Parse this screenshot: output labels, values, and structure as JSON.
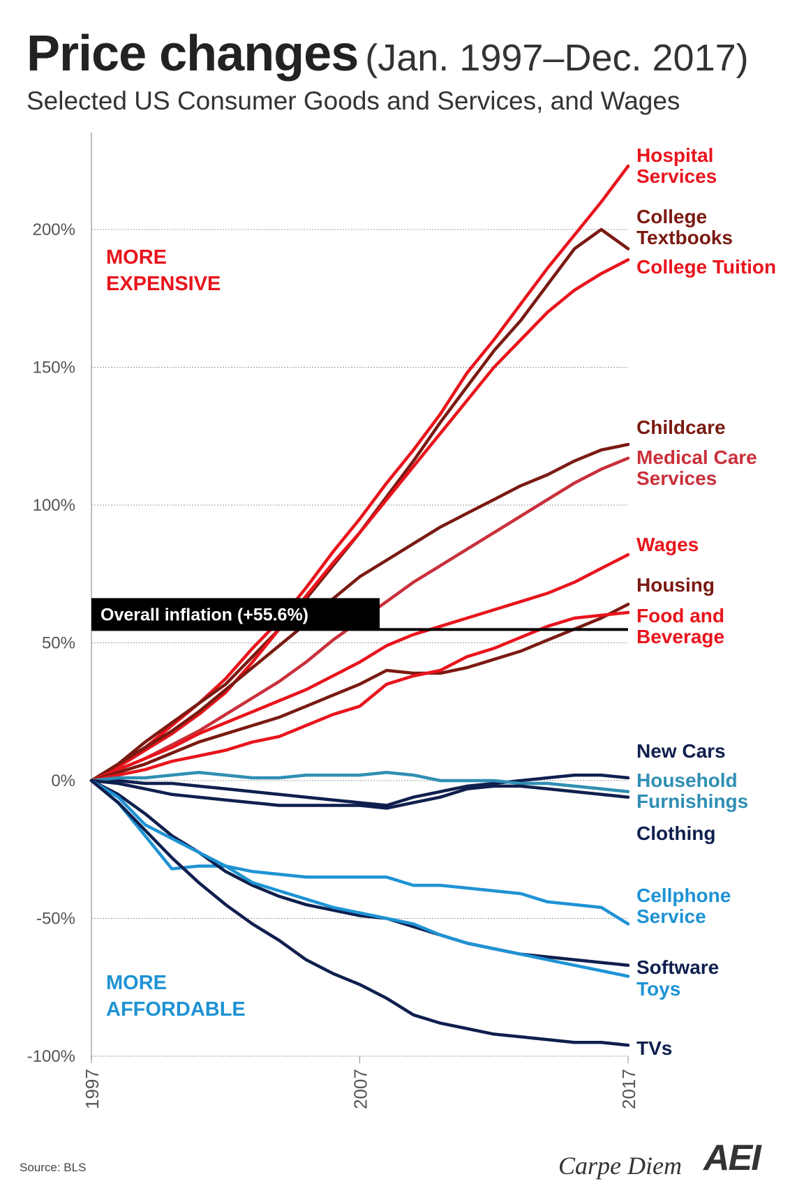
{
  "title": "Price changes",
  "title_range": "(Jan. 1997–Dec. 2017)",
  "subtitle": "Selected US Consumer Goods and Services, and Wages",
  "source": "Source:  BLS",
  "logo_text": "Carpe Diem",
  "logo_mark": "AEI",
  "chart_data": {
    "type": "line",
    "title": "Price changes (Jan. 1997–Dec. 2017)",
    "xlabel": "",
    "ylabel": "",
    "xlim": [
      1997,
      2017
    ],
    "ylim": [
      -100,
      230
    ],
    "yticks": [
      200,
      150,
      100,
      50,
      0,
      -50,
      -100
    ],
    "ytick_labels": [
      "200%",
      "150%",
      "100%",
      "50%",
      "0%",
      "-50%",
      "-100%"
    ],
    "xticks": [
      1997,
      2007,
      2017
    ],
    "xtick_labels": [
      "1997",
      "2007",
      "2017"
    ],
    "grid": true,
    "annotations": {
      "more_expensive_line1": "MORE",
      "more_expensive_line2": "EXPENSIVE",
      "more_affordable_line1": "MORE",
      "more_affordable_line2": "AFFORDABLE",
      "overall_inflation_label": "Overall inflation (+55.6%)",
      "overall_inflation_value": 55.6
    },
    "series": [
      {
        "name": "Hospital Services",
        "label_lines": [
          "Hospital",
          "Services"
        ],
        "color": "#e8141c",
        "x": [
          1997,
          1998,
          1999,
          2000,
          2001,
          2002,
          2003,
          2004,
          2005,
          2006,
          2007,
          2008,
          2009,
          2010,
          2011,
          2012,
          2013,
          2014,
          2015,
          2016,
          2017
        ],
        "values": [
          0,
          5,
          12,
          20,
          28,
          37,
          48,
          58,
          70,
          83,
          95,
          108,
          120,
          133,
          148,
          160,
          173,
          186,
          198,
          210,
          223
        ]
      },
      {
        "name": "College Textbooks",
        "label_lines": [
          "College",
          "Textbooks"
        ],
        "color": "#7a1a12",
        "x": [
          1997,
          1998,
          1999,
          2000,
          2001,
          2002,
          2003,
          2004,
          2005,
          2006,
          2007,
          2008,
          2009,
          2010,
          2011,
          2012,
          2013,
          2014,
          2015,
          2016,
          2017
        ],
        "values": [
          0,
          6,
          14,
          21,
          28,
          35,
          45,
          55,
          66,
          78,
          90,
          103,
          116,
          130,
          143,
          156,
          167,
          180,
          193,
          200,
          193
        ]
      },
      {
        "name": "College Tuition",
        "label_lines": [
          "College Tuition"
        ],
        "color": "#e8141c",
        "x": [
          1997,
          1998,
          1999,
          2000,
          2001,
          2002,
          2003,
          2004,
          2005,
          2006,
          2007,
          2008,
          2009,
          2010,
          2011,
          2012,
          2013,
          2014,
          2015,
          2016,
          2017
        ],
        "values": [
          0,
          5,
          11,
          17,
          24,
          32,
          43,
          55,
          67,
          79,
          90,
          102,
          114,
          126,
          138,
          150,
          160,
          170,
          178,
          184,
          189
        ]
      },
      {
        "name": "Childcare",
        "label_lines": [
          "Childcare"
        ],
        "color": "#7a1a12",
        "x": [
          1997,
          1998,
          1999,
          2000,
          2001,
          2002,
          2003,
          2004,
          2005,
          2006,
          2007,
          2008,
          2009,
          2010,
          2011,
          2012,
          2013,
          2014,
          2015,
          2016,
          2017
        ],
        "values": [
          0,
          6,
          12,
          18,
          25,
          33,
          41,
          49,
          57,
          66,
          74,
          80,
          86,
          92,
          97,
          102,
          107,
          111,
          116,
          120,
          122
        ]
      },
      {
        "name": "Medical Care Services",
        "label_lines": [
          "Medical Care",
          "Services"
        ],
        "color": "#c9303a",
        "x": [
          1997,
          1998,
          1999,
          2000,
          2001,
          2002,
          2003,
          2004,
          2005,
          2006,
          2007,
          2008,
          2009,
          2010,
          2011,
          2012,
          2013,
          2014,
          2015,
          2016,
          2017
        ],
        "values": [
          0,
          4,
          8,
          13,
          18,
          24,
          30,
          36,
          43,
          51,
          58,
          65,
          72,
          78,
          84,
          90,
          96,
          102,
          108,
          113,
          117
        ]
      },
      {
        "name": "Wages",
        "label_lines": [
          "Wages"
        ],
        "color": "#e8141c",
        "x": [
          1997,
          1998,
          1999,
          2000,
          2001,
          2002,
          2003,
          2004,
          2005,
          2006,
          2007,
          2008,
          2009,
          2010,
          2011,
          2012,
          2013,
          2014,
          2015,
          2016,
          2017
        ],
        "values": [
          0,
          4,
          8,
          12,
          17,
          21,
          25,
          29,
          33,
          38,
          43,
          49,
          53,
          56,
          59,
          62,
          65,
          68,
          72,
          77,
          82
        ]
      },
      {
        "name": "Housing",
        "label_lines": [
          "Housing"
        ],
        "color": "#7a1a12",
        "x": [
          1997,
          1998,
          1999,
          2000,
          2001,
          2002,
          2003,
          2004,
          2005,
          2006,
          2007,
          2008,
          2009,
          2010,
          2011,
          2012,
          2013,
          2014,
          2015,
          2016,
          2017
        ],
        "values": [
          0,
          3,
          6,
          10,
          14,
          17,
          20,
          23,
          27,
          31,
          35,
          40,
          39,
          39,
          41,
          44,
          47,
          51,
          55,
          59,
          64
        ]
      },
      {
        "name": "Food and Beverage",
        "label_lines": [
          "Food and",
          "Beverage"
        ],
        "color": "#e8141c",
        "x": [
          1997,
          1998,
          1999,
          2000,
          2001,
          2002,
          2003,
          2004,
          2005,
          2006,
          2007,
          2008,
          2009,
          2010,
          2011,
          2012,
          2013,
          2014,
          2015,
          2016,
          2017
        ],
        "values": [
          0,
          2,
          4,
          7,
          9,
          11,
          14,
          16,
          20,
          24,
          27,
          35,
          38,
          40,
          45,
          48,
          52,
          56,
          59,
          60,
          61
        ]
      },
      {
        "name": "New Cars",
        "label_lines": [
          "New Cars"
        ],
        "color": "#0f1f4e",
        "x": [
          1997,
          1998,
          1999,
          2000,
          2001,
          2002,
          2003,
          2004,
          2005,
          2006,
          2007,
          2008,
          2009,
          2010,
          2011,
          2012,
          2013,
          2014,
          2015,
          2016,
          2017
        ],
        "values": [
          0,
          0,
          -1,
          -1,
          -2,
          -3,
          -4,
          -5,
          -6,
          -7,
          -8,
          -9,
          -6,
          -4,
          -2,
          -1,
          0,
          1,
          2,
          2,
          1
        ]
      },
      {
        "name": "Household Furnishings",
        "label_lines": [
          "Household",
          "Furnishings"
        ],
        "color": "#2f8fb3",
        "x": [
          1997,
          1998,
          1999,
          2000,
          2001,
          2002,
          2003,
          2004,
          2005,
          2006,
          2007,
          2008,
          2009,
          2010,
          2011,
          2012,
          2013,
          2014,
          2015,
          2016,
          2017
        ],
        "values": [
          0,
          1,
          1,
          2,
          3,
          2,
          1,
          1,
          2,
          2,
          2,
          3,
          2,
          0,
          0,
          0,
          -1,
          -1,
          -2,
          -3,
          -4
        ]
      },
      {
        "name": "Clothing",
        "label_lines": [
          "Clothing"
        ],
        "color": "#0f1f4e",
        "x": [
          1997,
          1998,
          1999,
          2000,
          2001,
          2002,
          2003,
          2004,
          2005,
          2006,
          2007,
          2008,
          2009,
          2010,
          2011,
          2012,
          2013,
          2014,
          2015,
          2016,
          2017
        ],
        "values": [
          0,
          -1,
          -3,
          -5,
          -6,
          -7,
          -8,
          -9,
          -9,
          -9,
          -9,
          -10,
          -8,
          -6,
          -3,
          -2,
          -2,
          -3,
          -4,
          -5,
          -6
        ]
      },
      {
        "name": "Cellphone Service",
        "label_lines": [
          "Cellphone",
          "Service"
        ],
        "color": "#1e93d4",
        "x": [
          1997,
          1998,
          1999,
          2000,
          2001,
          2002,
          2003,
          2004,
          2005,
          2006,
          2007,
          2008,
          2009,
          2010,
          2011,
          2012,
          2013,
          2014,
          2015,
          2016,
          2017
        ],
        "values": [
          0,
          -8,
          -20,
          -32,
          -31,
          -31,
          -33,
          -34,
          -35,
          -35,
          -35,
          -35,
          -38,
          -38,
          -39,
          -40,
          -41,
          -44,
          -45,
          -46,
          -52
        ]
      },
      {
        "name": "Software",
        "label_lines": [
          "Software"
        ],
        "color": "#0f1f4e",
        "x": [
          1997,
          1998,
          1999,
          2000,
          2001,
          2002,
          2003,
          2004,
          2005,
          2006,
          2007,
          2008,
          2009,
          2010,
          2011,
          2012,
          2013,
          2014,
          2015,
          2016,
          2017
        ],
        "values": [
          0,
          -5,
          -12,
          -20,
          -26,
          -33,
          -38,
          -42,
          -45,
          -47,
          -49,
          -50,
          -53,
          -56,
          -59,
          -61,
          -63,
          -64,
          -65,
          -66,
          -67
        ]
      },
      {
        "name": "Toys",
        "label_lines": [
          "Toys"
        ],
        "color": "#1e93d4",
        "x": [
          1997,
          1998,
          1999,
          2000,
          2001,
          2002,
          2003,
          2004,
          2005,
          2006,
          2007,
          2008,
          2009,
          2010,
          2011,
          2012,
          2013,
          2014,
          2015,
          2016,
          2017
        ],
        "values": [
          0,
          -6,
          -16,
          -21,
          -26,
          -31,
          -37,
          -40,
          -43,
          -46,
          -48,
          -50,
          -52,
          -56,
          -59,
          -61,
          -63,
          -65,
          -67,
          -69,
          -71
        ]
      },
      {
        "name": "TVs",
        "label_lines": [
          "TVs"
        ],
        "color": "#0f1f4e",
        "x": [
          1997,
          1998,
          1999,
          2000,
          2001,
          2002,
          2003,
          2004,
          2005,
          2006,
          2007,
          2008,
          2009,
          2010,
          2011,
          2012,
          2013,
          2014,
          2015,
          2016,
          2017
        ],
        "values": [
          0,
          -8,
          -18,
          -28,
          -37,
          -45,
          -52,
          -58,
          -65,
          -70,
          -74,
          -79,
          -85,
          -88,
          -90,
          -92,
          -93,
          -94,
          -95,
          -95,
          -96
        ]
      }
    ]
  }
}
